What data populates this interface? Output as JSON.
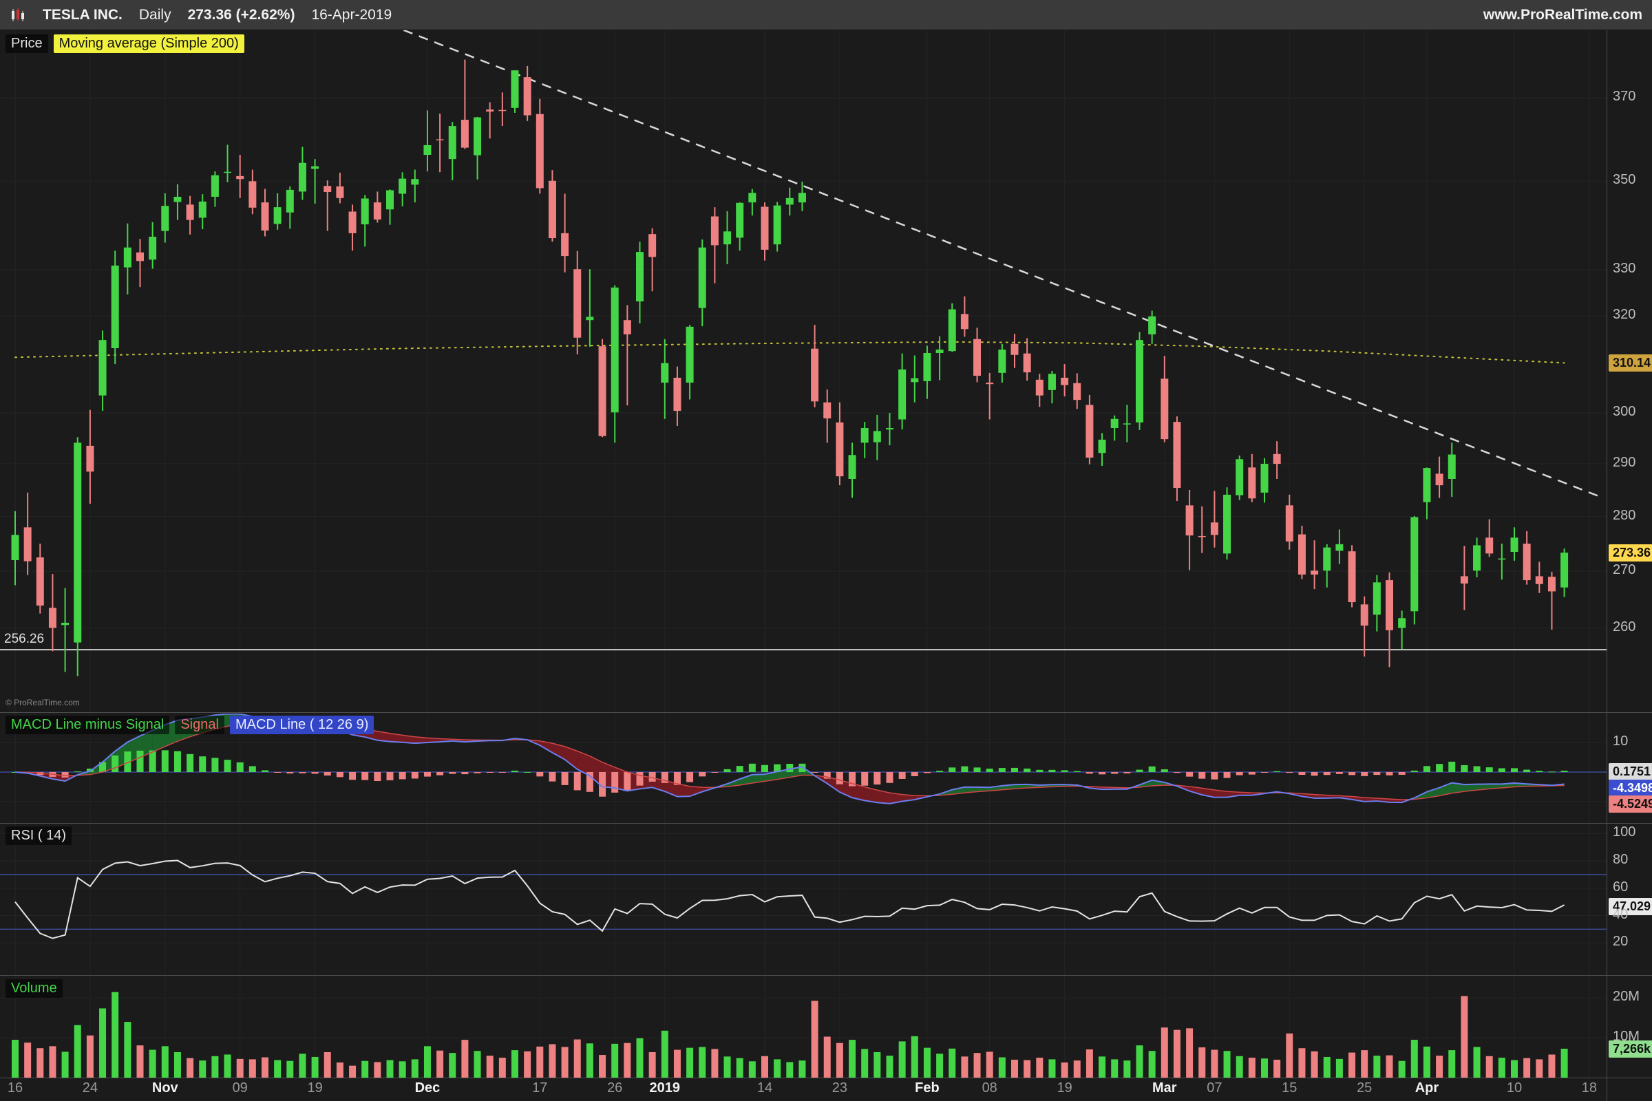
{
  "topbar": {
    "symbol": "TESLA INC.",
    "timeframe": "Daily",
    "price_change": "273.36  (+2.62%)",
    "date": "16-Apr-2019",
    "website": "www.ProRealTime.com"
  },
  "price_pane": {
    "label": "Price",
    "ma_label": "Moving average (Simple 200)",
    "support_label": "256.26",
    "copyright": "© ProRealTime.com",
    "ma_badge": "310.14",
    "last_badge": "273.36"
  },
  "macd_pane": {
    "label_hist": "MACD Line minus Signal",
    "label_signal": "Signal",
    "label_macd": "MACD Line ( 12 26 9)",
    "hist_badge": "0.1751",
    "macd_badge": "-4.3498",
    "signal_badge": "-4.5249"
  },
  "rsi_pane": {
    "label": "RSI ( 14)",
    "value_badge": "47.029"
  },
  "volume_pane": {
    "label": "Volume",
    "value_badge": "7,266k"
  },
  "theme": {
    "background": "#1b1b1b",
    "topbar_bg": "#3a3a3a",
    "candle_up": "#45d648",
    "candle_down": "#ee8181",
    "ma": "#c6c63a",
    "macd_blue": "#6b7ef0",
    "signal": "#cf4646",
    "cloud_up": "#1c6e2d",
    "cloud_down": "#7e1c22",
    "guide_blue": "#3d4a99",
    "grid": "#242424",
    "trendline": "#d9d9d9",
    "support": "#cfcfcf",
    "rsi_line": "#e4e4e4",
    "badge_ma_bg": "#cfa43f",
    "badge_last_bg": "#ffd84d",
    "badge_vol_bg": "#8fdf8f"
  },
  "chart_data": {
    "type": "candlestick",
    "title": "TESLA INC. Daily",
    "scale": "log",
    "visible_price_range": [
      245.6,
      387.0
    ],
    "support_line": 256.26,
    "trendline": {
      "from_index": 20,
      "from_price": 401.2,
      "to_index": 127,
      "to_price": 283.6,
      "style": "dashed"
    },
    "ma200": {
      "label": "Moving average (Simple 200)",
      "last": 310.14,
      "points": [
        [
          0,
          311.3
        ],
        [
          15,
          312.2
        ],
        [
          30,
          313.1
        ],
        [
          45,
          313.7
        ],
        [
          60,
          314.2
        ],
        [
          75,
          314.5
        ],
        [
          85,
          314.3
        ],
        [
          95,
          313.6
        ],
        [
          105,
          312.6
        ],
        [
          115,
          311.3
        ],
        [
          124,
          310.14
        ]
      ]
    },
    "indicators": {
      "macd": {
        "params": "( 12 26 9)",
        "last_hist": 0.1751,
        "last_macd": -4.3498,
        "last_signal": -4.5249
      },
      "rsi": {
        "period": 14,
        "last": 47.029
      },
      "volume": {
        "last_label": "7,266k",
        "last_m": 7.266
      }
    },
    "axes": {
      "price": [
        370,
        350,
        330,
        320,
        300,
        290,
        280,
        270,
        260
      ],
      "macd": [
        10
      ],
      "rsi": [
        100,
        80,
        60,
        40,
        20
      ],
      "rsi_guides": [
        70,
        30
      ],
      "volume": [
        {
          "v": 20,
          "t": "20M"
        },
        {
          "v": 10,
          "t": "10M"
        }
      ]
    },
    "ticks": [
      {
        "i": 0,
        "label": "16"
      },
      {
        "i": 6,
        "label": "24"
      },
      {
        "i": 12,
        "label": "Nov",
        "b": true
      },
      {
        "i": 18,
        "label": "09"
      },
      {
        "i": 24,
        "label": "19"
      },
      {
        "i": 33,
        "label": "Dec",
        "b": true
      },
      {
        "i": 42,
        "label": "17"
      },
      {
        "i": 48,
        "label": "26"
      },
      {
        "i": 52,
        "label": "2019",
        "b": true
      },
      {
        "i": 60,
        "label": "14"
      },
      {
        "i": 66,
        "label": "23"
      },
      {
        "i": 73,
        "label": "Feb",
        "b": true
      },
      {
        "i": 78,
        "label": "08"
      },
      {
        "i": 84,
        "label": "19"
      },
      {
        "i": 92,
        "label": "Mar",
        "b": true
      },
      {
        "i": 96,
        "label": "07"
      },
      {
        "i": 102,
        "label": "15"
      },
      {
        "i": 108,
        "label": "25"
      },
      {
        "i": 113,
        "label": "Apr",
        "b": true
      },
      {
        "i": 120,
        "label": "10"
      },
      {
        "i": 126,
        "label": "18"
      }
    ],
    "candles": [
      [
        272.0,
        281.0,
        267.5,
        276.6,
        9.5
      ],
      [
        278.0,
        284.5,
        269.3,
        271.8,
        8.8
      ],
      [
        272.5,
        275.0,
        262.5,
        263.9,
        7.4
      ],
      [
        263.5,
        269.5,
        256.0,
        260.0,
        7.9
      ],
      [
        260.5,
        267.0,
        252.5,
        260.9,
        6.5
      ],
      [
        257.5,
        295.2,
        251.8,
        294.1,
        13.2
      ],
      [
        293.5,
        300.6,
        282.4,
        288.5,
        10.6
      ],
      [
        303.5,
        316.9,
        300.4,
        314.9,
        17.4
      ],
      [
        313.2,
        334.2,
        309.9,
        330.9,
        21.5
      ],
      [
        330.5,
        340.3,
        324.6,
        334.9,
        14.0
      ],
      [
        333.8,
        336.8,
        326.2,
        331.9,
        8.1
      ],
      [
        332.2,
        340.6,
        330.2,
        337.3,
        7.0
      ],
      [
        338.6,
        347.2,
        336.0,
        344.3,
        7.9
      ],
      [
        345.2,
        349.3,
        341.1,
        346.4,
        6.4
      ],
      [
        344.6,
        346.6,
        337.8,
        341.1,
        4.9
      ],
      [
        341.6,
        347.0,
        339.0,
        345.3,
        4.3
      ],
      [
        346.4,
        352.3,
        344.1,
        351.4,
        5.4
      ],
      [
        352.1,
        358.6,
        349.8,
        352.2,
        5.8
      ],
      [
        351.2,
        356.2,
        346.1,
        350.5,
        4.7
      ],
      [
        350.0,
        352.7,
        342.4,
        343.9,
        4.6
      ],
      [
        345.1,
        348.2,
        337.4,
        338.7,
        5.1
      ],
      [
        340.2,
        347.2,
        338.9,
        344.0,
        4.4
      ],
      [
        342.8,
        348.8,
        339.1,
        348.0,
        4.2
      ],
      [
        347.6,
        358.1,
        345.7,
        354.3,
        6.0
      ],
      [
        352.9,
        355.2,
        344.8,
        353.5,
        5.2
      ],
      [
        348.9,
        350.2,
        338.6,
        347.5,
        6.4
      ],
      [
        348.8,
        352.0,
        344.9,
        346.1,
        3.8
      ],
      [
        343.0,
        344.6,
        334.2,
        338.1,
        3.0
      ],
      [
        340.1,
        346.8,
        335.1,
        346.0,
        4.2
      ],
      [
        345.1,
        347.6,
        340.5,
        341.2,
        3.9
      ],
      [
        343.5,
        348.1,
        340.0,
        347.9,
        4.4
      ],
      [
        347.1,
        352.1,
        344.2,
        350.6,
        4.1
      ],
      [
        349.2,
        352.7,
        345.1,
        350.5,
        4.6
      ],
      [
        356.2,
        366.9,
        352.3,
        358.5,
        7.9
      ],
      [
        359.9,
        366.1,
        352.1,
        359.7,
        6.8
      ],
      [
        355.2,
        364.1,
        350.2,
        363.1,
        6.2
      ],
      [
        364.6,
        379.5,
        357.6,
        357.9,
        9.5
      ],
      [
        356.1,
        365.3,
        350.4,
        365.2,
        6.7
      ],
      [
        367.1,
        368.9,
        360.1,
        366.6,
        5.5
      ],
      [
        367.0,
        371.3,
        363.1,
        366.8,
        5.0
      ],
      [
        367.5,
        376.8,
        366.3,
        376.8,
        6.9
      ],
      [
        375.1,
        377.9,
        364.3,
        365.7,
        6.6
      ],
      [
        366.0,
        369.7,
        347.1,
        348.4,
        7.8
      ],
      [
        350.1,
        352.6,
        336.2,
        337.0,
        8.4
      ],
      [
        338.1,
        347.1,
        329.4,
        333.0,
        7.7
      ],
      [
        330.1,
        334.1,
        311.9,
        315.4,
        9.6
      ],
      [
        319.1,
        330.1,
        313.5,
        319.8,
        8.6
      ],
      [
        313.6,
        315.1,
        295.2,
        295.4,
        5.7
      ],
      [
        300.1,
        326.6,
        294.1,
        326.1,
        8.5
      ],
      [
        319.1,
        322.3,
        301.5,
        316.1,
        8.7
      ],
      [
        323.1,
        336.2,
        318.4,
        333.9,
        9.9
      ],
      [
        337.9,
        339.2,
        325.3,
        332.8,
        6.4
      ],
      [
        306.1,
        315.1,
        298.8,
        310.1,
        11.8
      ],
      [
        307.1,
        309.4,
        297.4,
        300.4,
        7.0
      ],
      [
        306.1,
        318.1,
        302.7,
        317.7,
        7.5
      ],
      [
        321.7,
        336.7,
        317.8,
        334.9,
        7.7
      ],
      [
        341.9,
        344.0,
        327.0,
        335.4,
        7.2
      ],
      [
        335.6,
        343.1,
        331.2,
        338.5,
        5.3
      ],
      [
        337.1,
        345.1,
        334.2,
        345.0,
        4.9
      ],
      [
        345.1,
        348.2,
        342.1,
        347.3,
        4.1
      ],
      [
        344.1,
        345.1,
        332.0,
        334.4,
        5.4
      ],
      [
        335.6,
        345.2,
        334.0,
        344.4,
        4.6
      ],
      [
        344.6,
        348.5,
        342.1,
        346.1,
        3.9
      ],
      [
        345.1,
        349.9,
        343.1,
        347.3,
        4.3
      ],
      [
        313.1,
        318.1,
        301.1,
        302.3,
        19.3
      ],
      [
        302.1,
        304.7,
        294.1,
        298.9,
        10.3
      ],
      [
        298.1,
        302.1,
        285.9,
        287.6,
        8.7
      ],
      [
        287.1,
        294.1,
        283.5,
        291.7,
        9.5
      ],
      [
        294.1,
        298.2,
        291.1,
        297.0,
        7.2
      ],
      [
        294.2,
        299.6,
        290.7,
        296.4,
        6.4
      ],
      [
        296.7,
        300.0,
        293.6,
        297.0,
        5.5
      ],
      [
        298.7,
        312.1,
        296.7,
        308.8,
        9.1
      ],
      [
        306.2,
        311.7,
        302.1,
        307.0,
        10.4
      ],
      [
        306.4,
        313.7,
        302.8,
        312.2,
        7.5
      ],
      [
        312.2,
        315.7,
        306.6,
        312.9,
        6.0
      ],
      [
        312.6,
        322.7,
        312.4,
        321.4,
        7.3
      ],
      [
        320.4,
        324.2,
        315.6,
        317.2,
        5.3
      ],
      [
        315.1,
        317.5,
        306.2,
        307.5,
        6.2
      ],
      [
        306.1,
        308.1,
        298.7,
        305.8,
        6.5
      ],
      [
        308.1,
        314.1,
        306.1,
        312.9,
        5.1
      ],
      [
        314.1,
        316.2,
        309.1,
        311.8,
        4.5
      ],
      [
        312.1,
        315.3,
        306.5,
        308.2,
        4.4
      ],
      [
        306.7,
        307.9,
        301.2,
        303.5,
        5.0
      ],
      [
        304.6,
        308.5,
        301.9,
        307.9,
        4.6
      ],
      [
        307.1,
        309.9,
        303.3,
        305.6,
        3.8
      ],
      [
        306.0,
        308.0,
        300.8,
        302.6,
        4.3
      ],
      [
        301.6,
        303.6,
        289.9,
        291.2,
        7.1
      ],
      [
        292.1,
        296.0,
        289.6,
        294.7,
        5.3
      ],
      [
        297.0,
        299.5,
        294.5,
        298.8,
        4.6
      ],
      [
        297.7,
        301.6,
        294.2,
        297.9,
        4.3
      ],
      [
        298.1,
        316.6,
        296.6,
        314.9,
        8.1
      ],
      [
        316.1,
        321.1,
        314.1,
        319.9,
        6.7
      ],
      [
        306.9,
        311.6,
        294.2,
        294.8,
        12.6
      ],
      [
        298.2,
        299.3,
        282.9,
        285.4,
        12.0
      ],
      [
        282.1,
        285.0,
        270.2,
        276.5,
        12.4
      ],
      [
        276.4,
        281.9,
        273.3,
        276.2,
        7.6
      ],
      [
        278.9,
        284.8,
        274.3,
        276.6,
        7.0
      ],
      [
        273.2,
        285.5,
        272.1,
        284.1,
        6.7
      ],
      [
        284.0,
        291.6,
        283.1,
        290.9,
        5.4
      ],
      [
        289.3,
        291.9,
        282.7,
        283.4,
        5.0
      ],
      [
        284.5,
        291.1,
        282.6,
        290.0,
        4.8
      ],
      [
        291.9,
        294.4,
        287.1,
        290.0,
        4.5
      ],
      [
        282.1,
        284.1,
        273.9,
        275.4,
        11.1
      ],
      [
        276.7,
        278.3,
        268.6,
        269.4,
        7.4
      ],
      [
        270.1,
        275.6,
        266.8,
        269.4,
        6.6
      ],
      [
        270.1,
        274.9,
        267.1,
        274.3,
        5.2
      ],
      [
        273.7,
        277.6,
        271.3,
        274.9,
        4.7
      ],
      [
        273.6,
        274.7,
        263.6,
        264.5,
        6.3
      ],
      [
        264.1,
        265.5,
        255.1,
        260.4,
        6.9
      ],
      [
        262.3,
        269.3,
        259.4,
        268.0,
        5.5
      ],
      [
        268.4,
        269.8,
        253.3,
        259.6,
        5.6
      ],
      [
        260.0,
        263.0,
        256.3,
        261.7,
        4.2
      ],
      [
        262.9,
        280.1,
        260.6,
        279.9,
        9.5
      ],
      [
        282.7,
        289.3,
        279.5,
        289.2,
        7.8
      ],
      [
        288.1,
        291.4,
        283.5,
        285.9,
        5.5
      ],
      [
        287.1,
        294.1,
        283.7,
        291.8,
        6.9
      ],
      [
        269.1,
        274.6,
        263.1,
        267.8,
        20.5
      ],
      [
        270.1,
        276.1,
        268.9,
        274.7,
        7.7
      ],
      [
        276.1,
        279.5,
        272.6,
        273.2,
        5.4
      ],
      [
        272.1,
        275.0,
        268.5,
        272.3,
        5.0
      ],
      [
        273.5,
        278.0,
        271.9,
        276.1,
        4.4
      ],
      [
        275.0,
        277.3,
        267.6,
        268.4,
        4.9
      ],
      [
        269.1,
        271.7,
        266.1,
        267.7,
        4.6
      ],
      [
        269.0,
        269.9,
        259.7,
        266.4,
        5.8
      ],
      [
        267.1,
        274.1,
        265.4,
        273.36,
        7.266
      ]
    ]
  }
}
